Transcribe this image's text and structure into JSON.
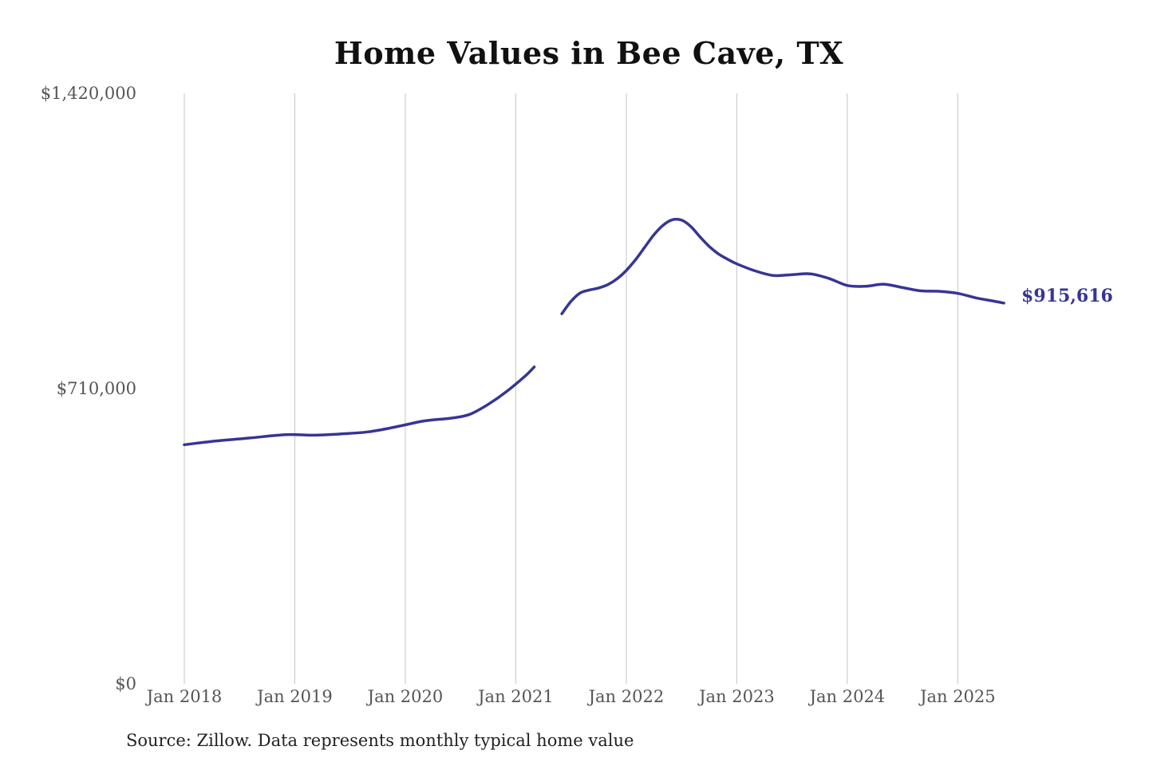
{
  "chart_data": {
    "type": "line",
    "title": "Home Values in Bee Cave, TX",
    "xlabel": "",
    "ylabel": "",
    "ylim": [
      0,
      1420000
    ],
    "y_ticks": [
      {
        "value": 0,
        "label": "$0"
      },
      {
        "value": 710000,
        "label": "$710,000"
      },
      {
        "value": 1420000,
        "label": "$1,420,000"
      }
    ],
    "x_ticks": [
      {
        "value": "2018-01",
        "label": "Jan 2018"
      },
      {
        "value": "2019-01",
        "label": "Jan 2019"
      },
      {
        "value": "2020-01",
        "label": "Jan 2020"
      },
      {
        "value": "2021-01",
        "label": "Jan 2021"
      },
      {
        "value": "2022-01",
        "label": "Jan 2022"
      },
      {
        "value": "2023-01",
        "label": "Jan 2023"
      },
      {
        "value": "2024-01",
        "label": "Jan 2024"
      },
      {
        "value": "2025-01",
        "label": "Jan 2025"
      }
    ],
    "grid": {
      "x": true,
      "y": false
    },
    "legend": "none",
    "colors": {
      "line": "#363596",
      "grid": "#c4c4c4"
    },
    "end_label": "$915,616",
    "series": [
      {
        "points": [
          {
            "x": "2018-01",
            "y": 575000
          },
          {
            "x": "2018-04",
            "y": 583000
          },
          {
            "x": "2018-08",
            "y": 591000
          },
          {
            "x": "2018-12",
            "y": 599000
          },
          {
            "x": "2019-03",
            "y": 598000
          },
          {
            "x": "2019-06",
            "y": 601000
          },
          {
            "x": "2019-09",
            "y": 606000
          },
          {
            "x": "2019-12",
            "y": 618000
          },
          {
            "x": "2020-03",
            "y": 632000
          },
          {
            "x": "2020-06",
            "y": 639000
          },
          {
            "x": "2020-08",
            "y": 648000
          },
          {
            "x": "2020-10",
            "y": 672000
          },
          {
            "x": "2020-12",
            "y": 703000
          },
          {
            "x": "2021-02",
            "y": 740000
          },
          {
            "x": "2021-03",
            "y": 762000
          },
          {
            "x": "2021-04",
            "y": null
          },
          {
            "x": "2021-05",
            "y": null
          },
          {
            "x": "2021-06",
            "y": 890000
          },
          {
            "x": "2021-07",
            "y": 920000
          },
          {
            "x": "2021-08",
            "y": 940000
          },
          {
            "x": "2021-09",
            "y": 947000
          },
          {
            "x": "2021-10",
            "y": 952000
          },
          {
            "x": "2021-11",
            "y": 960000
          },
          {
            "x": "2021-12",
            "y": 974000
          },
          {
            "x": "2022-01",
            "y": 994000
          },
          {
            "x": "2022-02",
            "y": 1020000
          },
          {
            "x": "2022-03",
            "y": 1050000
          },
          {
            "x": "2022-04",
            "y": 1080000
          },
          {
            "x": "2022-05",
            "y": 1103000
          },
          {
            "x": "2022-06",
            "y": 1116000
          },
          {
            "x": "2022-07",
            "y": 1115000
          },
          {
            "x": "2022-08",
            "y": 1100000
          },
          {
            "x": "2022-09",
            "y": 1075000
          },
          {
            "x": "2022-10",
            "y": 1052000
          },
          {
            "x": "2022-11",
            "y": 1034000
          },
          {
            "x": "2022-12",
            "y": 1021000
          },
          {
            "x": "2023-01",
            "y": 1010000
          },
          {
            "x": "2023-03",
            "y": 993000
          },
          {
            "x": "2023-05",
            "y": 982000
          },
          {
            "x": "2023-07",
            "y": 984000
          },
          {
            "x": "2023-09",
            "y": 986000
          },
          {
            "x": "2023-11",
            "y": 975000
          },
          {
            "x": "2024-01",
            "y": 958000
          },
          {
            "x": "2024-03",
            "y": 956000
          },
          {
            "x": "2024-05",
            "y": 961000
          },
          {
            "x": "2024-07",
            "y": 953000
          },
          {
            "x": "2024-09",
            "y": 945000
          },
          {
            "x": "2024-11",
            "y": 944000
          },
          {
            "x": "2025-01",
            "y": 939000
          },
          {
            "x": "2025-03",
            "y": 928000
          },
          {
            "x": "2025-05",
            "y": 920000
          },
          {
            "x": "2025-06",
            "y": 915616
          }
        ]
      }
    ]
  },
  "source_note": "Source: Zillow. Data represents monthly typical home value"
}
